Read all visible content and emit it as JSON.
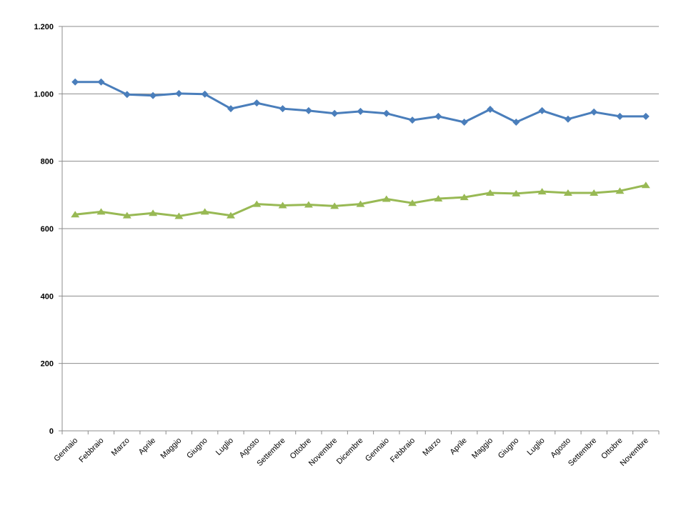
{
  "chart_data": {
    "type": "line",
    "title": "",
    "xlabel": "",
    "ylabel": "",
    "categories": [
      "Gennaio",
      "Febbraio",
      "Marzo",
      "Aprile",
      "Maggio",
      "Giugno",
      "Luglio",
      "Agosto",
      "Settembre",
      "Ottobre",
      "Novembre",
      "Dicembre",
      "Gennaio",
      "Febbraio",
      "Marzo",
      "Aprile",
      "Maggio",
      "Giugno",
      "Luglio",
      "Agosto",
      "Settembre",
      "Ottobre",
      "Novembre"
    ],
    "ylim": [
      0,
      1200
    ],
    "yticks": [
      0,
      200,
      400,
      600,
      800,
      1000,
      1200
    ],
    "ytick_labels": [
      "0",
      "200",
      "400",
      "600",
      "800",
      "1.000",
      "1.200"
    ],
    "grid": "horizontal",
    "legend": "none",
    "series": [
      {
        "color": "#4A7EBB",
        "marker": "diamond",
        "values": [
          1035,
          1035,
          998,
          995,
          1001,
          999,
          956,
          973,
          956,
          950,
          942,
          948,
          942,
          922,
          933,
          916,
          954,
          916,
          950,
          925,
          946,
          933,
          933
        ]
      },
      {
        "color": "#98B954",
        "marker": "triangle",
        "values": [
          642,
          650,
          639,
          646,
          637,
          650,
          639,
          673,
          669,
          671,
          667,
          673,
          688,
          676,
          689,
          693,
          706,
          704,
          710,
          706,
          706,
          712,
          729
        ]
      }
    ]
  }
}
